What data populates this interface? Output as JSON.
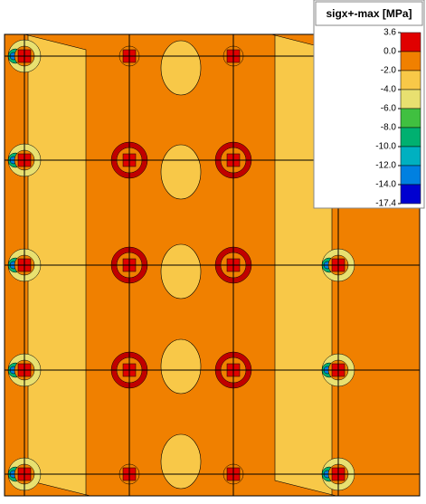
{
  "chart_data": {
    "type": "contour",
    "title": "sigx+-max [MPa]",
    "colorbar": {
      "ticks": [
        3.6,
        {
          "value": 0,
          "label": "0.0"
        },
        {
          "value": -2,
          "label": "-2.0"
        },
        {
          "value": -4,
          "label": "-4.0"
        },
        {
          "value": -6,
          "label": "-6.0"
        },
        {
          "value": -8,
          "label": "-8.0"
        },
        {
          "value": -10,
          "label": "-10.0"
        },
        {
          "value": -12,
          "label": "-12.0"
        },
        {
          "value": -14,
          "label": "-14.0"
        },
        -17.4
      ],
      "colors": [
        "#e00000",
        "#f08000",
        "#f8c848",
        "#e8e070",
        "#40c040",
        "#00b070",
        "#00b0c0",
        "#0080e0",
        "#0000d0"
      ]
    }
  }
}
